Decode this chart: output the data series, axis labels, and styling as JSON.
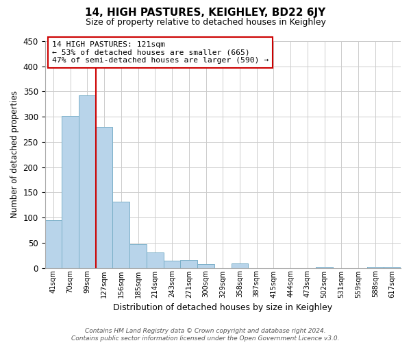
{
  "title": "14, HIGH PASTURES, KEIGHLEY, BD22 6JY",
  "subtitle": "Size of property relative to detached houses in Keighley",
  "xlabel": "Distribution of detached houses by size in Keighley",
  "ylabel": "Number of detached properties",
  "bar_labels": [
    "41sqm",
    "70sqm",
    "99sqm",
    "127sqm",
    "156sqm",
    "185sqm",
    "214sqm",
    "243sqm",
    "271sqm",
    "300sqm",
    "329sqm",
    "358sqm",
    "387sqm",
    "415sqm",
    "444sqm",
    "473sqm",
    "502sqm",
    "531sqm",
    "559sqm",
    "588sqm",
    "617sqm"
  ],
  "bar_values": [
    95,
    302,
    342,
    280,
    131,
    47,
    30,
    14,
    15,
    8,
    0,
    9,
    0,
    0,
    0,
    0,
    2,
    0,
    0,
    2,
    2
  ],
  "bar_color": "#b8d4ea",
  "bar_edge_color": "#7aafc8",
  "vline_color": "#cc0000",
  "annotation_text": "14 HIGH PASTURES: 121sqm\n← 53% of detached houses are smaller (665)\n47% of semi-detached houses are larger (590) →",
  "annotation_box_color": "#ffffff",
  "annotation_box_edge": "#cc0000",
  "ylim": [
    0,
    450
  ],
  "yticks": [
    0,
    50,
    100,
    150,
    200,
    250,
    300,
    350,
    400,
    450
  ],
  "footnote": "Contains HM Land Registry data © Crown copyright and database right 2024.\nContains public sector information licensed under the Open Government Licence v3.0.",
  "bg_color": "#ffffff",
  "grid_color": "#cccccc"
}
